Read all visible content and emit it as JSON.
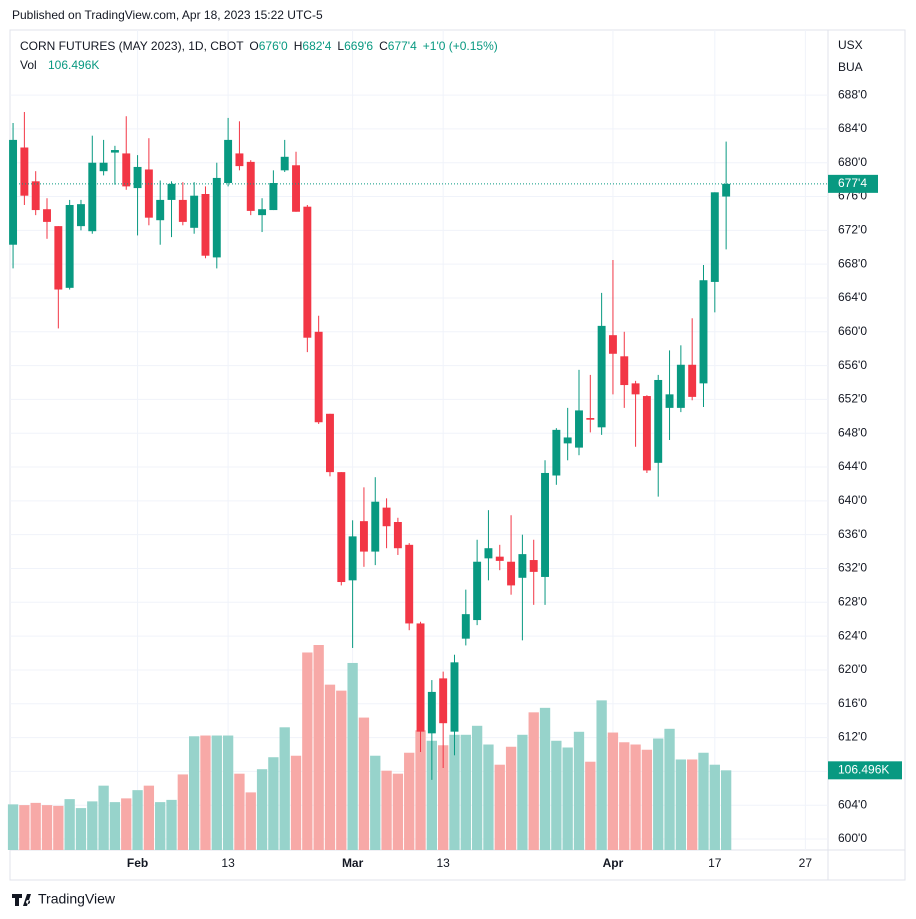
{
  "published": "Published on TradingView.com, Apr 18, 2023 15:22 UTC-5",
  "footer": "TradingView",
  "chart_data": {
    "type": "candlestick",
    "symbol": "CORN FUTURES (MAY 2023), 1D, CBOT",
    "ohlc_legend": [
      {
        "key": "O",
        "value": "676'0"
      },
      {
        "key": "H",
        "value": "682'4"
      },
      {
        "key": "L",
        "value": "669'6"
      },
      {
        "key": "C",
        "value": "677'4"
      }
    ],
    "change": "+1'0 (+0.15%)",
    "volume_name": "Vol",
    "volume_last_label": "106.496K",
    "last_price_label": "677'4",
    "currency": "USX",
    "unit": "BUA",
    "up_color": "#089981",
    "down_color": "#f23645",
    "up_volume_color": "#97d3cb",
    "down_volume_color": "#f7a9a7",
    "grid": true,
    "open": [
      670.3,
      681.8,
      677.8,
      674.5,
      672.5,
      665.2,
      672.5,
      671.9,
      679,
      681.2,
      681.1,
      677,
      679.2,
      673.2,
      675.6,
      675.6,
      672.3,
      676.3,
      668.8,
      677.6,
      681.1,
      680.1,
      673.8,
      674.4,
      679.1,
      679.7,
      674.8,
      660,
      650.3,
      643.4,
      630.6,
      637.6,
      634,
      639.2,
      637.5,
      634.8,
      625.5,
      612.5,
      619,
      612.7,
      623.7,
      625.9,
      633.2,
      633.4,
      632.8,
      630.9,
      633,
      631,
      643,
      646.8,
      646.3,
      649.8,
      648.7,
      659.6,
      657.1,
      653.9,
      652.4,
      644.5,
      651,
      651,
      656.1,
      653.9,
      665.9,
      676
    ],
    "high": [
      684.7,
      686,
      679,
      675.8,
      672.5,
      675.6,
      675.6,
      683.2,
      682.7,
      682,
      685.5,
      680.9,
      682.9,
      677.9,
      677.8,
      677.7,
      677.7,
      677.2,
      680,
      685.3,
      684.9,
      680.3,
      675.8,
      679.1,
      682.7,
      681.3,
      675,
      661.9,
      650.3,
      643.4,
      637.7,
      641.6,
      642.8,
      640.3,
      638,
      635,
      625.7,
      618.8,
      619.8,
      621.8,
      629.5,
      635.4,
      638.9,
      634.8,
      638.3,
      636,
      635.4,
      644.8,
      648.6,
      651,
      655.5,
      654.9,
      664.6,
      668.5,
      660,
      654.2,
      652.5,
      654.9,
      657.8,
      658.4,
      661.6,
      667.9,
      676.5,
      682.5
    ],
    "low": [
      667.5,
      675,
      673.8,
      671,
      660.4,
      665,
      672,
      671.6,
      678.5,
      677.4,
      676.8,
      671.4,
      672.6,
      670.3,
      671.2,
      672.6,
      671.6,
      668.7,
      667.5,
      677.2,
      679.1,
      673.8,
      671.8,
      674.4,
      678.9,
      674.2,
      657.6,
      649.1,
      642.9,
      630,
      622.6,
      632.2,
      632.4,
      634.4,
      633.6,
      624.7,
      610.3,
      607,
      608.4,
      609.9,
      622.9,
      625.3,
      630.6,
      631.8,
      628.9,
      623.5,
      627.7,
      627.7,
      641.9,
      644.8,
      645.4,
      648.1,
      647.8,
      652.6,
      651,
      646.4,
      643.3,
      640.5,
      647.2,
      650.5,
      651.9,
      651.1,
      662.3,
      669.75
    ],
    "close": [
      682.7,
      676.1,
      674.4,
      673,
      665,
      675,
      675.1,
      680,
      680,
      681.5,
      677.2,
      679.5,
      673.5,
      675.6,
      677.5,
      673,
      676.1,
      669,
      678.2,
      682.7,
      679.6,
      674.3,
      674.5,
      677.6,
      680.7,
      674.2,
      659.3,
      649.3,
      643.4,
      630.4,
      635.8,
      634,
      639.9,
      637,
      634.4,
      625.5,
      612.7,
      617.4,
      613.7,
      620.9,
      626.6,
      632.8,
      634.4,
      632.9,
      630,
      633.7,
      631.6,
      643.3,
      648.4,
      647.5,
      650.7,
      649.6,
      660.7,
      657.4,
      653.7,
      652.6,
      643.6,
      654.3,
      652.6,
      656.1,
      652.3,
      666.1,
      676.5,
      677.5
    ],
    "volume": [
      61,
      60,
      63,
      60,
      59,
      68,
      56,
      65,
      86,
      64,
      69,
      80,
      86,
      64,
      67,
      101,
      152,
      153,
      153,
      153,
      102,
      77,
      108,
      124,
      164,
      126,
      264,
      274,
      221,
      213,
      250,
      177,
      126,
      106,
      102,
      130,
      160,
      146,
      140,
      154,
      154,
      166,
      141,
      114,
      138,
      154,
      184,
      190,
      146,
      137,
      158,
      118,
      200,
      157,
      144,
      141,
      134,
      149,
      162,
      121,
      121,
      130,
      114,
      106.496
    ],
    "ylim": [
      598.7,
      695.7
    ],
    "yticks": [
      {
        "value": 600,
        "label": "600'0"
      },
      {
        "value": 604,
        "label": "604'0"
      },
      {
        "value": 608,
        "label": "608'0"
      },
      {
        "value": 612,
        "label": "612'0"
      },
      {
        "value": 616,
        "label": "616'0"
      },
      {
        "value": 620,
        "label": "620'0"
      },
      {
        "value": 624,
        "label": "624'0"
      },
      {
        "value": 628,
        "label": "628'0"
      },
      {
        "value": 632,
        "label": "632'0"
      },
      {
        "value": 636,
        "label": "636'0"
      },
      {
        "value": 640,
        "label": "640'0"
      },
      {
        "value": 644,
        "label": "644'0"
      },
      {
        "value": 648,
        "label": "648'0"
      },
      {
        "value": 652,
        "label": "652'0"
      },
      {
        "value": 656,
        "label": "656'0"
      },
      {
        "value": 660,
        "label": "660'0"
      },
      {
        "value": 664,
        "label": "664'0"
      },
      {
        "value": 668,
        "label": "668'0"
      },
      {
        "value": 672,
        "label": "672'0"
      },
      {
        "value": 676,
        "label": "676'0"
      },
      {
        "value": 680,
        "label": "680'0"
      },
      {
        "value": 684,
        "label": "684'0"
      },
      {
        "value": 688,
        "label": "688'0"
      }
    ],
    "xlim": [
      -0.27,
      72
    ],
    "xticks": [
      {
        "value": 11,
        "label": "Feb"
      },
      {
        "value": 19,
        "label": "13"
      },
      {
        "value": 30,
        "label": "Mar"
      },
      {
        "value": 38,
        "label": "13"
      },
      {
        "value": 53,
        "label": "Apr"
      },
      {
        "value": 62,
        "label": "17"
      },
      {
        "value": 70,
        "label": "27"
      }
    ]
  }
}
